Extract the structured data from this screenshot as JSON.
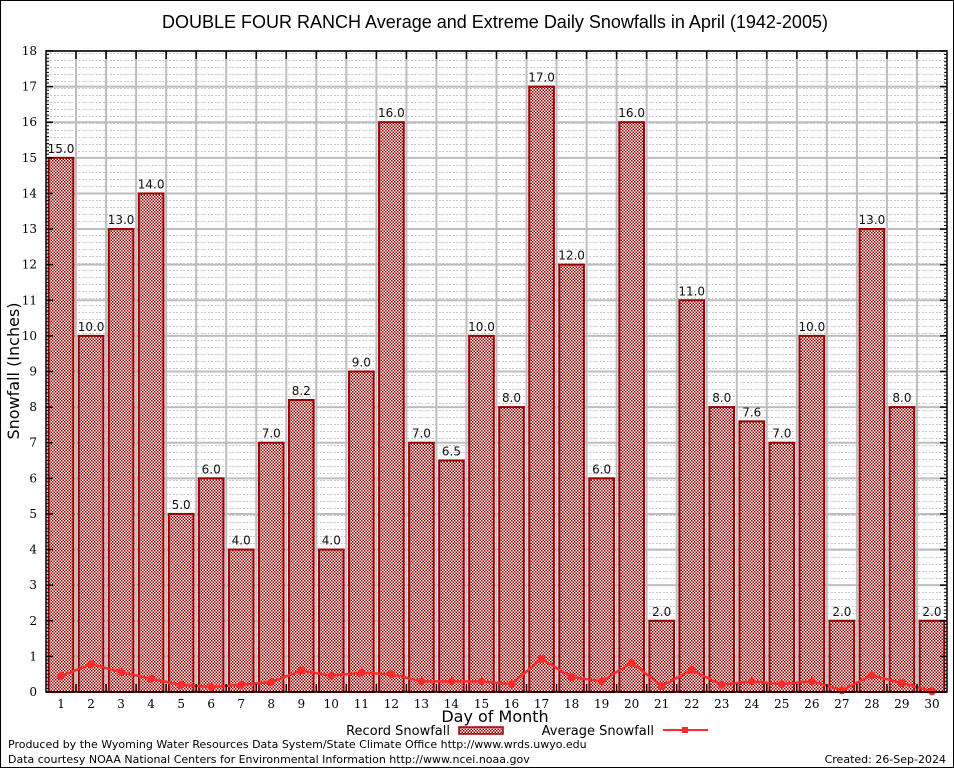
{
  "chart_data": {
    "type": "bar",
    "title": "DOUBLE FOUR RANCH Average and Extreme Daily Snowfalls in April (1942-2005)",
    "xlabel": "Day of Month",
    "ylabel": "Snowfall (Inches)",
    "ylim": [
      0,
      18
    ],
    "yticks": [
      "0",
      "1",
      "2",
      "3",
      "4",
      "5",
      "6",
      "7",
      "8",
      "9",
      "10",
      "11",
      "12",
      "13",
      "14",
      "15",
      "16",
      "17",
      "18"
    ],
    "grid": true,
    "legend_position": "bottom-center",
    "categories": [
      "1",
      "2",
      "3",
      "4",
      "5",
      "6",
      "7",
      "8",
      "9",
      "10",
      "11",
      "12",
      "13",
      "14",
      "15",
      "16",
      "17",
      "18",
      "19",
      "20",
      "21",
      "22",
      "23",
      "24",
      "25",
      "26",
      "27",
      "28",
      "29",
      "30"
    ],
    "series": [
      {
        "name": "Record Snowfall",
        "type": "bar",
        "color": "#990000",
        "values": [
          15.0,
          10.0,
          13.0,
          14.0,
          5.0,
          6.0,
          4.0,
          7.0,
          8.2,
          4.0,
          9.0,
          16.0,
          7.0,
          6.5,
          10.0,
          8.0,
          17.0,
          12.0,
          6.0,
          16.0,
          2.0,
          11.0,
          8.0,
          7.6,
          7.0,
          10.0,
          2.0,
          13.0,
          8.0,
          2.0
        ],
        "labels": [
          "15.0",
          "10.0",
          "13.0",
          "14.0",
          "5.0",
          "6.0",
          "4.0",
          "7.0",
          "8.2",
          "4.0",
          "9.0",
          "16.0",
          "7.0",
          "6.5",
          "10.0",
          "8.0",
          "17.0",
          "12.0",
          "6.0",
          "16.0",
          "2.0",
          "11.0",
          "8.0",
          "7.6",
          "7.0",
          "10.0",
          "2.0",
          "13.0",
          "8.0",
          "2.0"
        ]
      },
      {
        "name": "Average Snowfall",
        "type": "line",
        "color": "#ff2a2a",
        "values": [
          0.45,
          0.78,
          0.56,
          0.37,
          0.2,
          0.14,
          0.2,
          0.28,
          0.6,
          0.46,
          0.54,
          0.5,
          0.3,
          0.3,
          0.3,
          0.22,
          0.93,
          0.42,
          0.3,
          0.82,
          0.17,
          0.62,
          0.2,
          0.3,
          0.22,
          0.3,
          0.05,
          0.47,
          0.25,
          0.02
        ]
      }
    ]
  },
  "footer": {
    "produced_by": "Produced by the Wyoming Water Resources Data System/State Climate Office http://www.wrds.uwyo.edu",
    "data_courtesy": "Data courtesy NOAA National Centers for Environmental Information http://www.ncei.noaa.gov",
    "created": "Created: 26-Sep-2024"
  }
}
